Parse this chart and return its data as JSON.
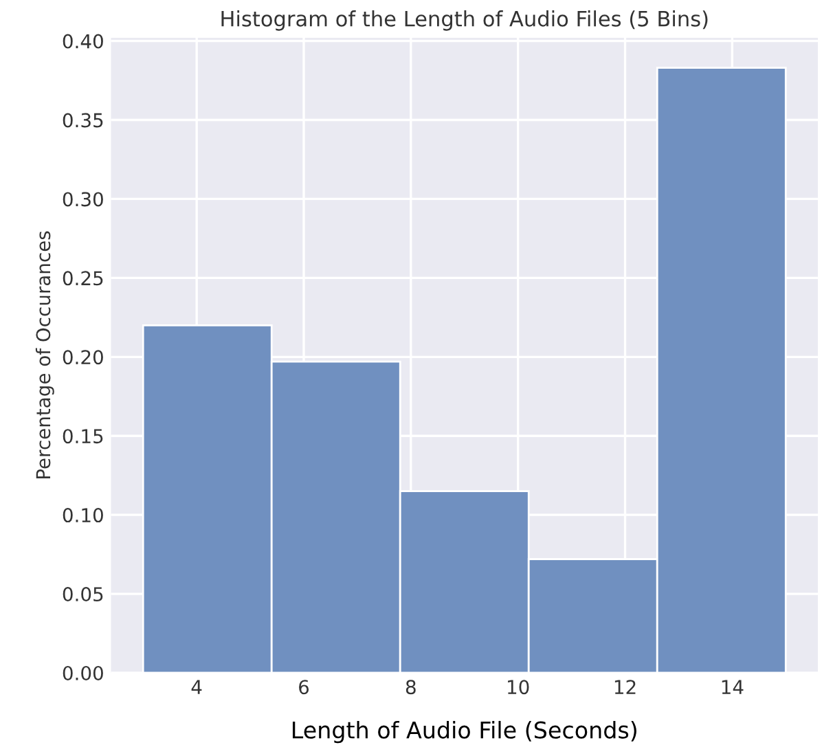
{
  "chart_data": {
    "type": "histogram",
    "title": "Histogram of the Length of Audio Files (5 Bins)",
    "xlabel": "Length of Audio File (Seconds)",
    "ylabel": "Percentage of Occurances",
    "bins": [
      3.0,
      5.4,
      7.8,
      10.2,
      12.6,
      15.0
    ],
    "values": [
      0.22,
      0.197,
      0.115,
      0.072,
      0.383
    ],
    "color": "#7090c0",
    "xlim": [
      2.4,
      15.6
    ],
    "xticks": [
      4,
      6,
      8,
      10,
      12,
      14
    ],
    "ylim": [
      0,
      0.402
    ],
    "yticks": [
      {
        "value": 0,
        "label": "0.00"
      },
      {
        "value": 0.05,
        "label": "0.05"
      },
      {
        "value": 0.1,
        "label": "0.10"
      },
      {
        "value": 0.15,
        "label": "0.15"
      },
      {
        "value": 0.2,
        "label": "0.20"
      },
      {
        "value": 0.25,
        "label": "0.25"
      },
      {
        "value": 0.3,
        "label": "0.30"
      },
      {
        "value": 0.35,
        "label": "0.35"
      },
      {
        "value": 0.4,
        "label": "0.40"
      }
    ],
    "grid": true
  }
}
